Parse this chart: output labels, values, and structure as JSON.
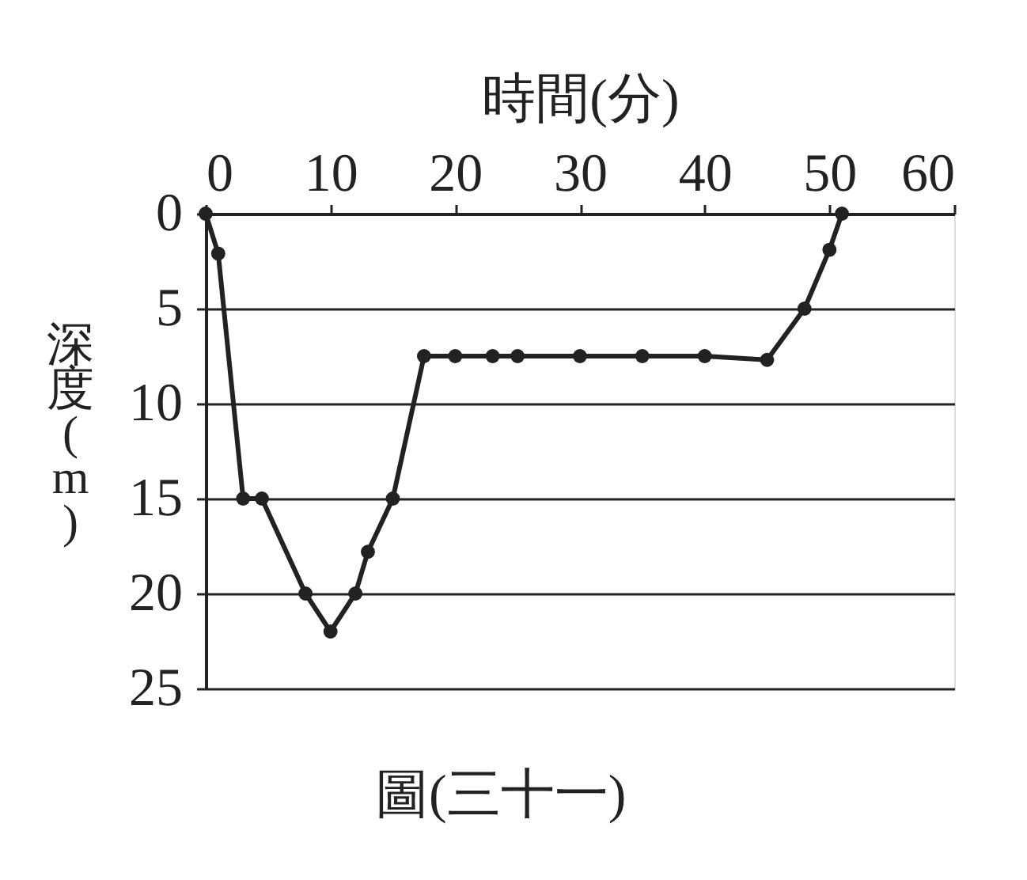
{
  "chart_data": {
    "type": "line",
    "xlabel": "時間(分)",
    "ylabel": "深度(m)",
    "annotations": [
      "圖(三十一)"
    ],
    "x": [
      0,
      1,
      3,
      4.5,
      8,
      10,
      12,
      13,
      15,
      17.5,
      20,
      23,
      25,
      30,
      35,
      40,
      45,
      48,
      50,
      51
    ],
    "values": [
      0,
      2.1,
      15,
      15,
      20,
      22,
      20,
      17.8,
      15,
      7.5,
      7.5,
      7.5,
      7.5,
      7.5,
      7.5,
      7.5,
      7.7,
      5,
      1.9,
      0
    ],
    "color": "#222222",
    "xlim": [
      0,
      60
    ],
    "xticks": [
      0,
      10,
      20,
      30,
      40,
      50,
      60
    ],
    "ylim": [
      25,
      0
    ],
    "yticks": [
      0,
      5,
      10,
      15,
      20,
      25
    ],
    "grid": "y",
    "marker": "circle",
    "line_style": "solid"
  }
}
